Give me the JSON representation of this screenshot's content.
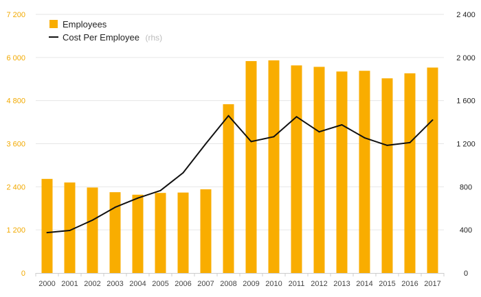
{
  "chart_data": {
    "type": "bar",
    "categories": [
      "2000",
      "2001",
      "2002",
      "2003",
      "2004",
      "2005",
      "2006",
      "2007",
      "2008",
      "2009",
      "2010",
      "2011",
      "2012",
      "2013",
      "2014",
      "2015",
      "2016",
      "2017"
    ],
    "series": [
      {
        "name": "Employees",
        "type": "bar",
        "axis": "left",
        "color": "#f9ad00",
        "values": [
          2620,
          2520,
          2380,
          2250,
          2180,
          2230,
          2240,
          2330,
          4700,
          5900,
          5920,
          5780,
          5740,
          5610,
          5630,
          5420,
          5560,
          5720
        ]
      },
      {
        "name": "Cost Per Employee",
        "type": "line",
        "axis": "right",
        "color": "#111111",
        "values": [
          375,
          395,
          490,
          610,
          695,
          765,
          930,
          1200,
          1460,
          1220,
          1265,
          1450,
          1310,
          1375,
          1255,
          1185,
          1210,
          1420
        ]
      }
    ],
    "legend": {
      "position": "top-left",
      "suffix": "(rhs)"
    },
    "y_left": {
      "ylim": [
        0,
        7200
      ],
      "ticks": [
        0,
        1200,
        2400,
        3600,
        4800,
        6000,
        7200
      ],
      "tick_labels": [
        "0",
        "1 200",
        "2 400",
        "3 600",
        "4 800",
        "6 000",
        "7 200"
      ]
    },
    "y_right": {
      "ylim": [
        0,
        2400
      ],
      "ticks": [
        0,
        400,
        800,
        1200,
        1600,
        2000,
        2400
      ],
      "tick_labels": [
        "0",
        "400",
        "800",
        "1 200",
        "1 600",
        "2 000",
        "2 400"
      ]
    },
    "grid": true,
    "title": "",
    "xlabel": "",
    "ylabel": ""
  }
}
